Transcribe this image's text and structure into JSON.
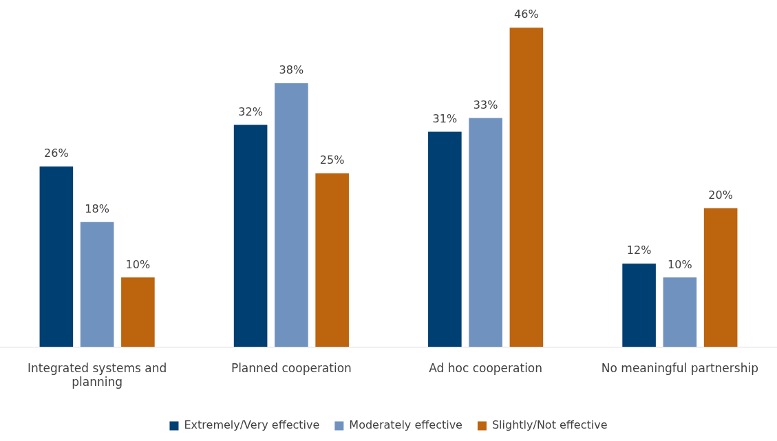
{
  "chart_data": {
    "type": "bar",
    "categories": [
      "Integrated systems and planning",
      "Planned cooperation",
      "Ad hoc cooperation",
      "No meaningful partnership"
    ],
    "series": [
      {
        "name": "Extremely/Very effective",
        "color": "#003f72",
        "values": [
          26,
          32,
          31,
          12
        ],
        "value_labels": [
          "26%",
          "32%",
          "31%",
          "12%"
        ]
      },
      {
        "name": "Moderately effective",
        "color": "#7092be",
        "values": [
          18,
          38,
          33,
          10
        ],
        "value_labels": [
          "18%",
          "38%",
          "33%",
          "10%"
        ]
      },
      {
        "name": "Slightly/Not effective",
        "color": "#bd640f",
        "values": [
          10,
          25,
          46,
          20
        ],
        "value_labels": [
          "10%",
          "25%",
          "46%",
          "20%"
        ]
      }
    ],
    "legend": "bottom",
    "grid": false
  }
}
